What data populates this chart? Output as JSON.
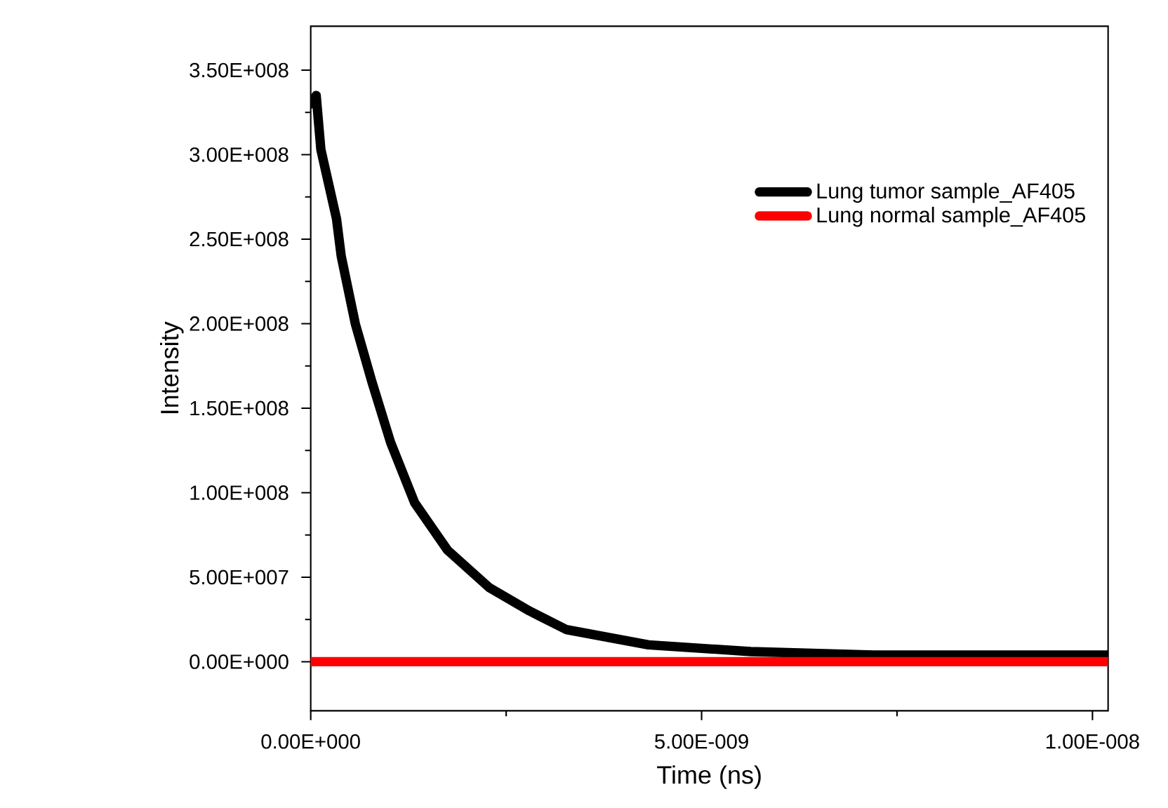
{
  "chart_data": {
    "type": "line",
    "xlabel": "Time (ns)",
    "ylabel": "Intensity",
    "xlim": [
      0,
      1.02e-08
    ],
    "ylim": [
      -29000000.0,
      376000000.0
    ],
    "xticks": [
      {
        "value": 0,
        "label": "0.00E+000"
      },
      {
        "value": 5e-09,
        "label": "5.00E-009"
      },
      {
        "value": 1e-08,
        "label": "1.00E-008"
      }
    ],
    "yticks": [
      {
        "value": 0,
        "label": "0.00E+000"
      },
      {
        "value": 50000000.0,
        "label": "5.00E+007"
      },
      {
        "value": 100000000.0,
        "label": "1.00E+008"
      },
      {
        "value": 150000000.0,
        "label": "1.50E+008"
      },
      {
        "value": 200000000.0,
        "label": "2.00E+008"
      },
      {
        "value": 250000000.0,
        "label": "2.50E+008"
      },
      {
        "value": 300000000.0,
        "label": "3.00E+008"
      },
      {
        "value": 350000000.0,
        "label": "3.50E+008"
      }
    ],
    "legend": "top right",
    "grid": false,
    "marker": "none",
    "line_style": "solid",
    "series": [
      {
        "name": "Lung tumor sample_AF405",
        "color": "#000000",
        "x": [
          0,
          7e-11,
          1.3e-10,
          3.3e-10,
          3.9e-10,
          5.7e-10,
          7.8e-10,
          1.02e-09,
          1.33e-09,
          1.75e-09,
          2.28e-09,
          2.8e-09,
          3.27e-09,
          4.32e-09,
          5.63e-09,
          7.2e-09,
          9.45e-09,
          1.02e-08
        ],
        "values": [
          330000000.0,
          335000000.0,
          303000000.0,
          262000000.0,
          240000000.0,
          200000000.0,
          166000000.0,
          130000000.0,
          94000000.0,
          66000000.0,
          44000000.0,
          30000000.0,
          19000000.0,
          10000000.0,
          6000000.0,
          4000000.0,
          4000000.0,
          4000000.0
        ]
      },
      {
        "name": "Lung normal sample_AF405",
        "color": "#ff0000",
        "x": [
          0,
          1.02e-08
        ],
        "values": [
          0,
          0
        ]
      }
    ]
  }
}
